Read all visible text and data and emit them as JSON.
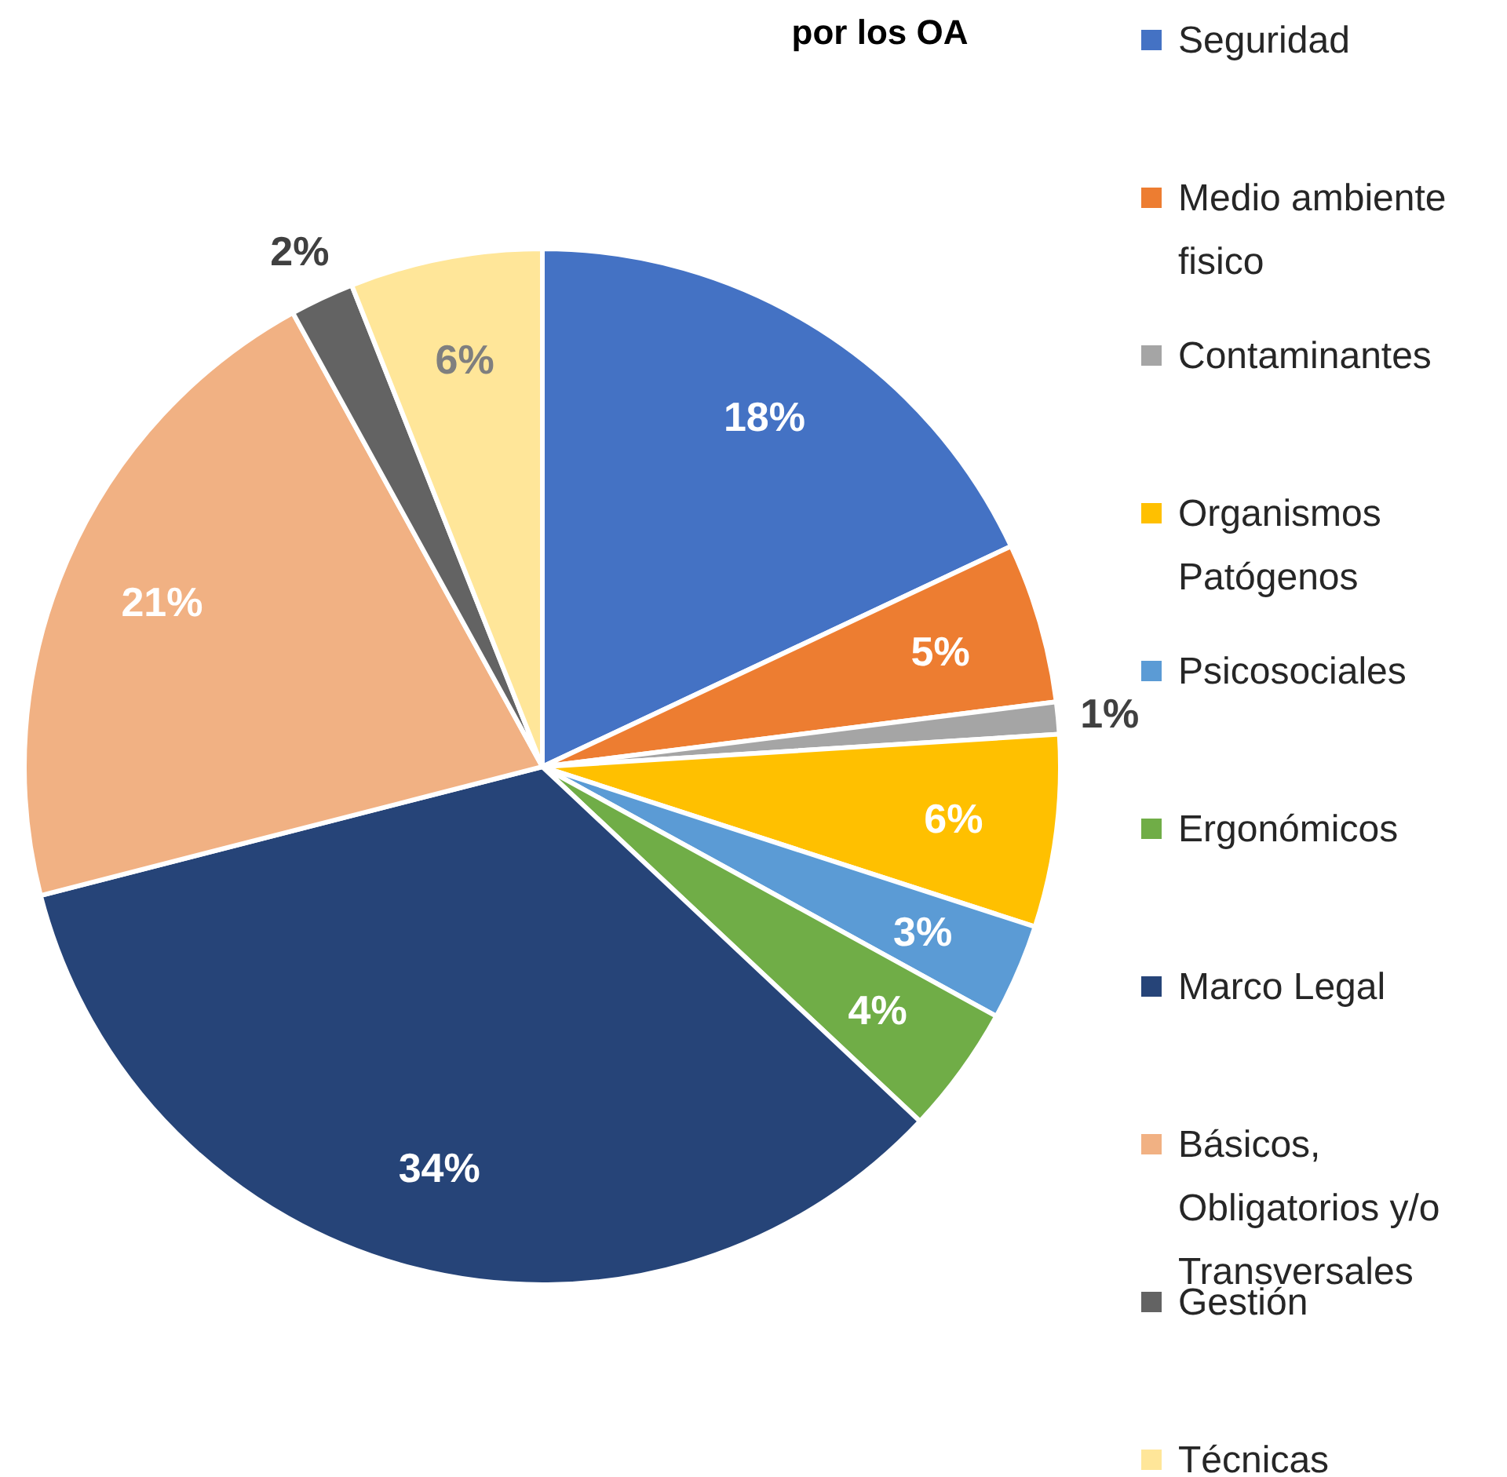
{
  "chart_data": {
    "type": "pie",
    "title": "por los OA",
    "legend": "right",
    "categories": [
      "Seguridad",
      "Medio ambiente fisico",
      "Contaminantes",
      "Organismos Patógenos",
      "Psicosociales",
      "Ergonómicos",
      "Marco Legal",
      "Básicos, Obligatorios y/o Transversales",
      "Gestión",
      "Técnicas"
    ],
    "values": [
      18,
      5,
      1,
      6,
      3,
      4,
      34,
      21,
      2,
      6
    ],
    "value_labels": [
      "18%",
      "5%",
      "1%",
      "6%",
      "3%",
      "4%",
      "34%",
      "21%",
      "2%",
      "6%"
    ],
    "colors": [
      "#4472c4",
      "#ed7d31",
      "#a5a5a5",
      "#ffc000",
      "#5b9bd5",
      "#70ad47",
      "#264478",
      "#f1b183",
      "#636363",
      "#ffe699"
    ]
  }
}
